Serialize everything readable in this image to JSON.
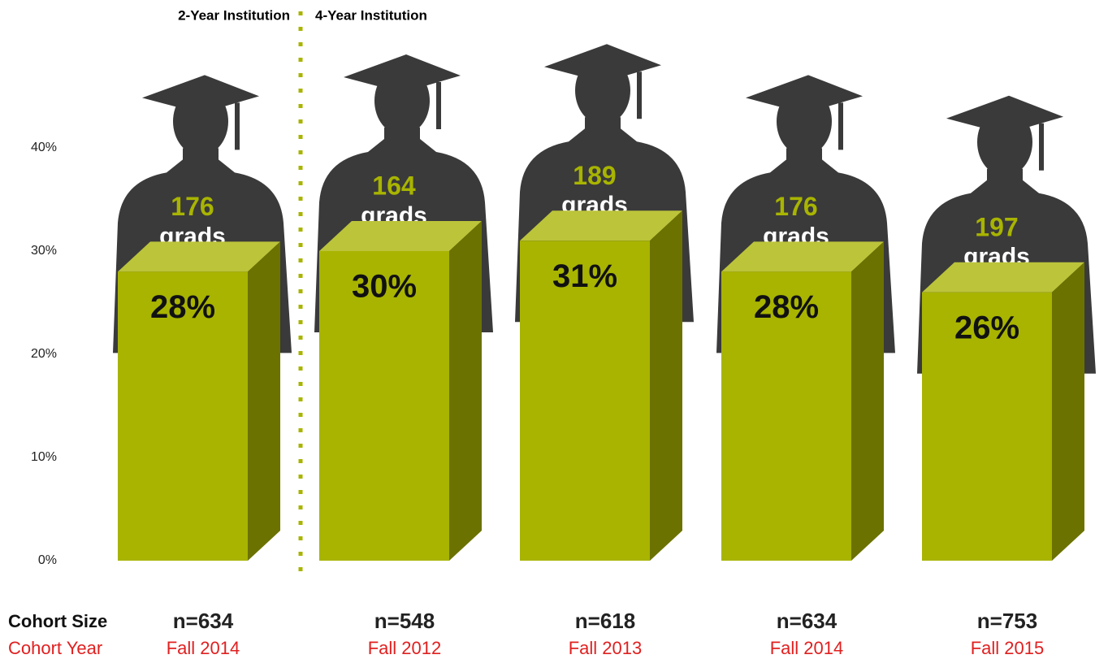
{
  "chart_data": {
    "type": "bar",
    "group_labels": [
      "2-Year Institution",
      "4-Year Institution"
    ],
    "categories": [
      "Fall 2014",
      "Fall 2012",
      "Fall 2013",
      "Fall 2014",
      "Fall 2015"
    ],
    "cohort_sizes": [
      "n=634",
      "n=548",
      "n=618",
      "n=634",
      "n=753"
    ],
    "row_labels": [
      "Cohort Size",
      "Cohort Year"
    ],
    "values": [
      28,
      30,
      31,
      28,
      26
    ],
    "value_labels": [
      "28%",
      "30%",
      "31%",
      "28%",
      "26%"
    ],
    "grads": {
      "values": [
        176,
        164,
        189,
        176,
        197
      ],
      "label": "grads"
    },
    "color": "#a8b400",
    "ylim": [
      0,
      40
    ],
    "yticks": [
      {
        "value": 0,
        "label": "0%"
      },
      {
        "value": 10,
        "label": "10%"
      },
      {
        "value": 20,
        "label": "20%"
      },
      {
        "value": 30,
        "label": "30%"
      },
      {
        "value": 40,
        "label": "40%"
      }
    ]
  }
}
